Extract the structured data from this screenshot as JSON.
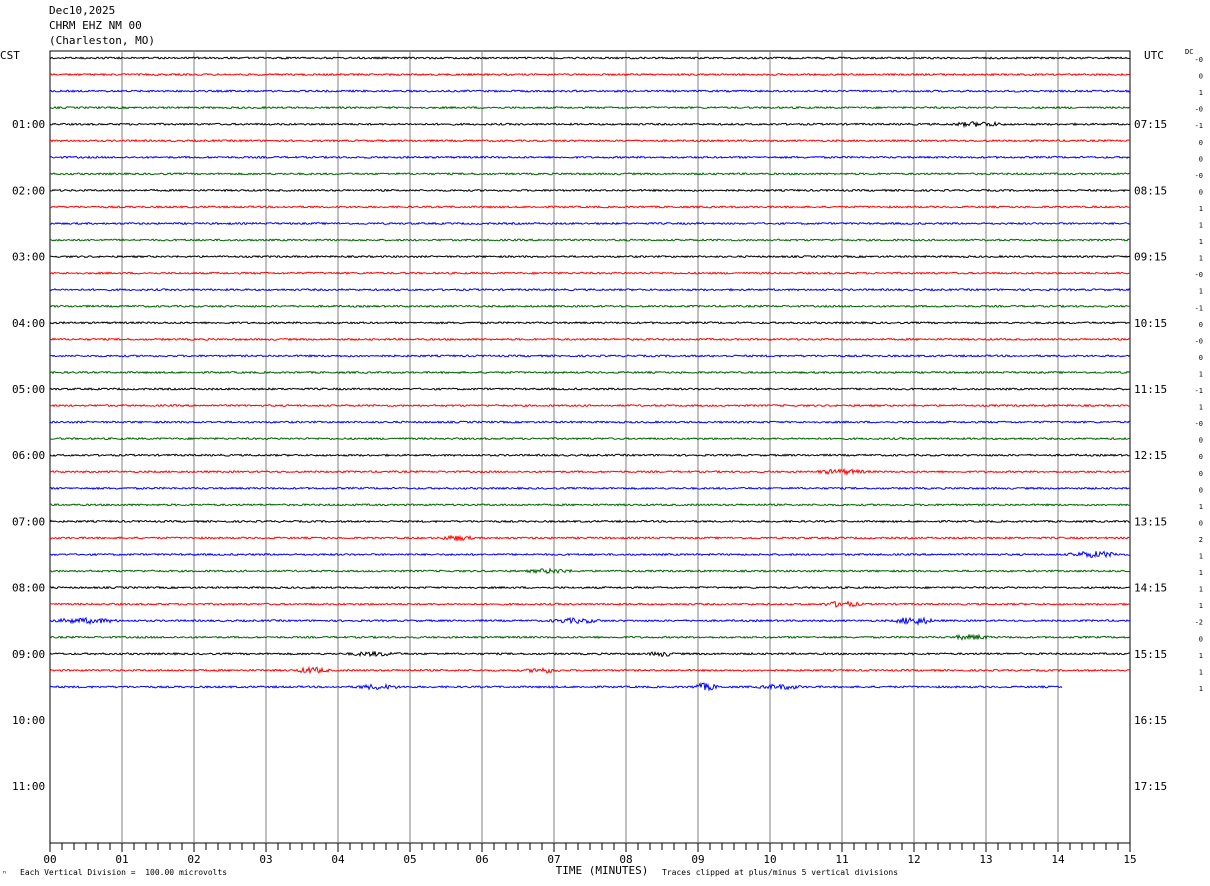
{
  "header": {
    "date": "Dec10,2025",
    "station": "CHRM EHZ NM 00",
    "location": "(Charleston, MO)"
  },
  "left_tz": "CST",
  "right_tz": "UTC",
  "dc_label": "DC",
  "footer": {
    "left_mark": "ⁿ",
    "division_note": "Each Vertical Division =  100.00 microvolts",
    "clip_note": "Traces clipped at plus/minus 5 vertical divisions"
  },
  "chart_data": {
    "type": "line",
    "title": "",
    "xlabel": "TIME (MINUTES)",
    "ylabel": "",
    "x_ticks": [
      "00",
      "01",
      "02",
      "03",
      "04",
      "05",
      "06",
      "07",
      "08",
      "09",
      "10",
      "11",
      "12",
      "13",
      "14",
      "15"
    ],
    "xlim": [
      0,
      15
    ],
    "grid": true,
    "left_hour_labels": [
      "01:00",
      "02:00",
      "03:00",
      "04:00",
      "05:00",
      "06:00",
      "07:00",
      "08:00",
      "09:00",
      "10:00",
      "11:00"
    ],
    "right_hour_labels": [
      "07:15",
      "08:15",
      "09:15",
      "10:15",
      "11:15",
      "12:15",
      "13:15",
      "14:15",
      "15:15",
      "16:15",
      "17:15"
    ],
    "trace_colors": [
      "#000000",
      "#ff0000",
      "#0000ff",
      "#006400"
    ],
    "trace_count": 39,
    "last_trace_end_minute": 14.05,
    "dc_offsets": [
      "-0",
      "0",
      "1",
      "-0",
      "-1",
      "0",
      "0",
      "-0",
      "0",
      "1",
      "1",
      "1",
      "1",
      "-0",
      "1",
      "-1",
      "0",
      "-0",
      "0",
      "1",
      "-1",
      "1",
      "-0",
      "0",
      "0",
      "0",
      "0",
      "1",
      "0",
      "2",
      "1",
      "1",
      "1",
      "1",
      "-2",
      "0",
      "1",
      "1",
      "1"
    ],
    "events": [
      {
        "trace": 4,
        "start": 12.5,
        "end": 13.3,
        "amp": 1.8
      },
      {
        "trace": 25,
        "start": 10.6,
        "end": 11.4,
        "amp": 1.8
      },
      {
        "trace": 29,
        "start": 5.4,
        "end": 5.9,
        "amp": 2.0
      },
      {
        "trace": 30,
        "start": 14.1,
        "end": 14.9,
        "amp": 2.5
      },
      {
        "trace": 31,
        "start": 6.6,
        "end": 7.3,
        "amp": 1.6
      },
      {
        "trace": 33,
        "start": 10.7,
        "end": 11.3,
        "amp": 2.2
      },
      {
        "trace": 34,
        "start": 0.0,
        "end": 1.0,
        "amp": 2.0
      },
      {
        "trace": 34,
        "start": 6.9,
        "end": 7.7,
        "amp": 1.8
      },
      {
        "trace": 34,
        "start": 11.7,
        "end": 12.3,
        "amp": 3.2
      },
      {
        "trace": 35,
        "start": 12.5,
        "end": 13.1,
        "amp": 2.0
      },
      {
        "trace": 36,
        "start": 4.1,
        "end": 4.9,
        "amp": 1.6
      },
      {
        "trace": 36,
        "start": 8.3,
        "end": 8.7,
        "amp": 1.8
      },
      {
        "trace": 37,
        "start": 3.4,
        "end": 3.9,
        "amp": 2.4
      },
      {
        "trace": 37,
        "start": 6.6,
        "end": 7.1,
        "amp": 2.0
      },
      {
        "trace": 38,
        "start": 4.2,
        "end": 4.9,
        "amp": 1.8
      },
      {
        "trace": 38,
        "start": 8.9,
        "end": 9.3,
        "amp": 3.0
      },
      {
        "trace": 38,
        "start": 9.8,
        "end": 10.5,
        "amp": 1.8
      }
    ]
  }
}
